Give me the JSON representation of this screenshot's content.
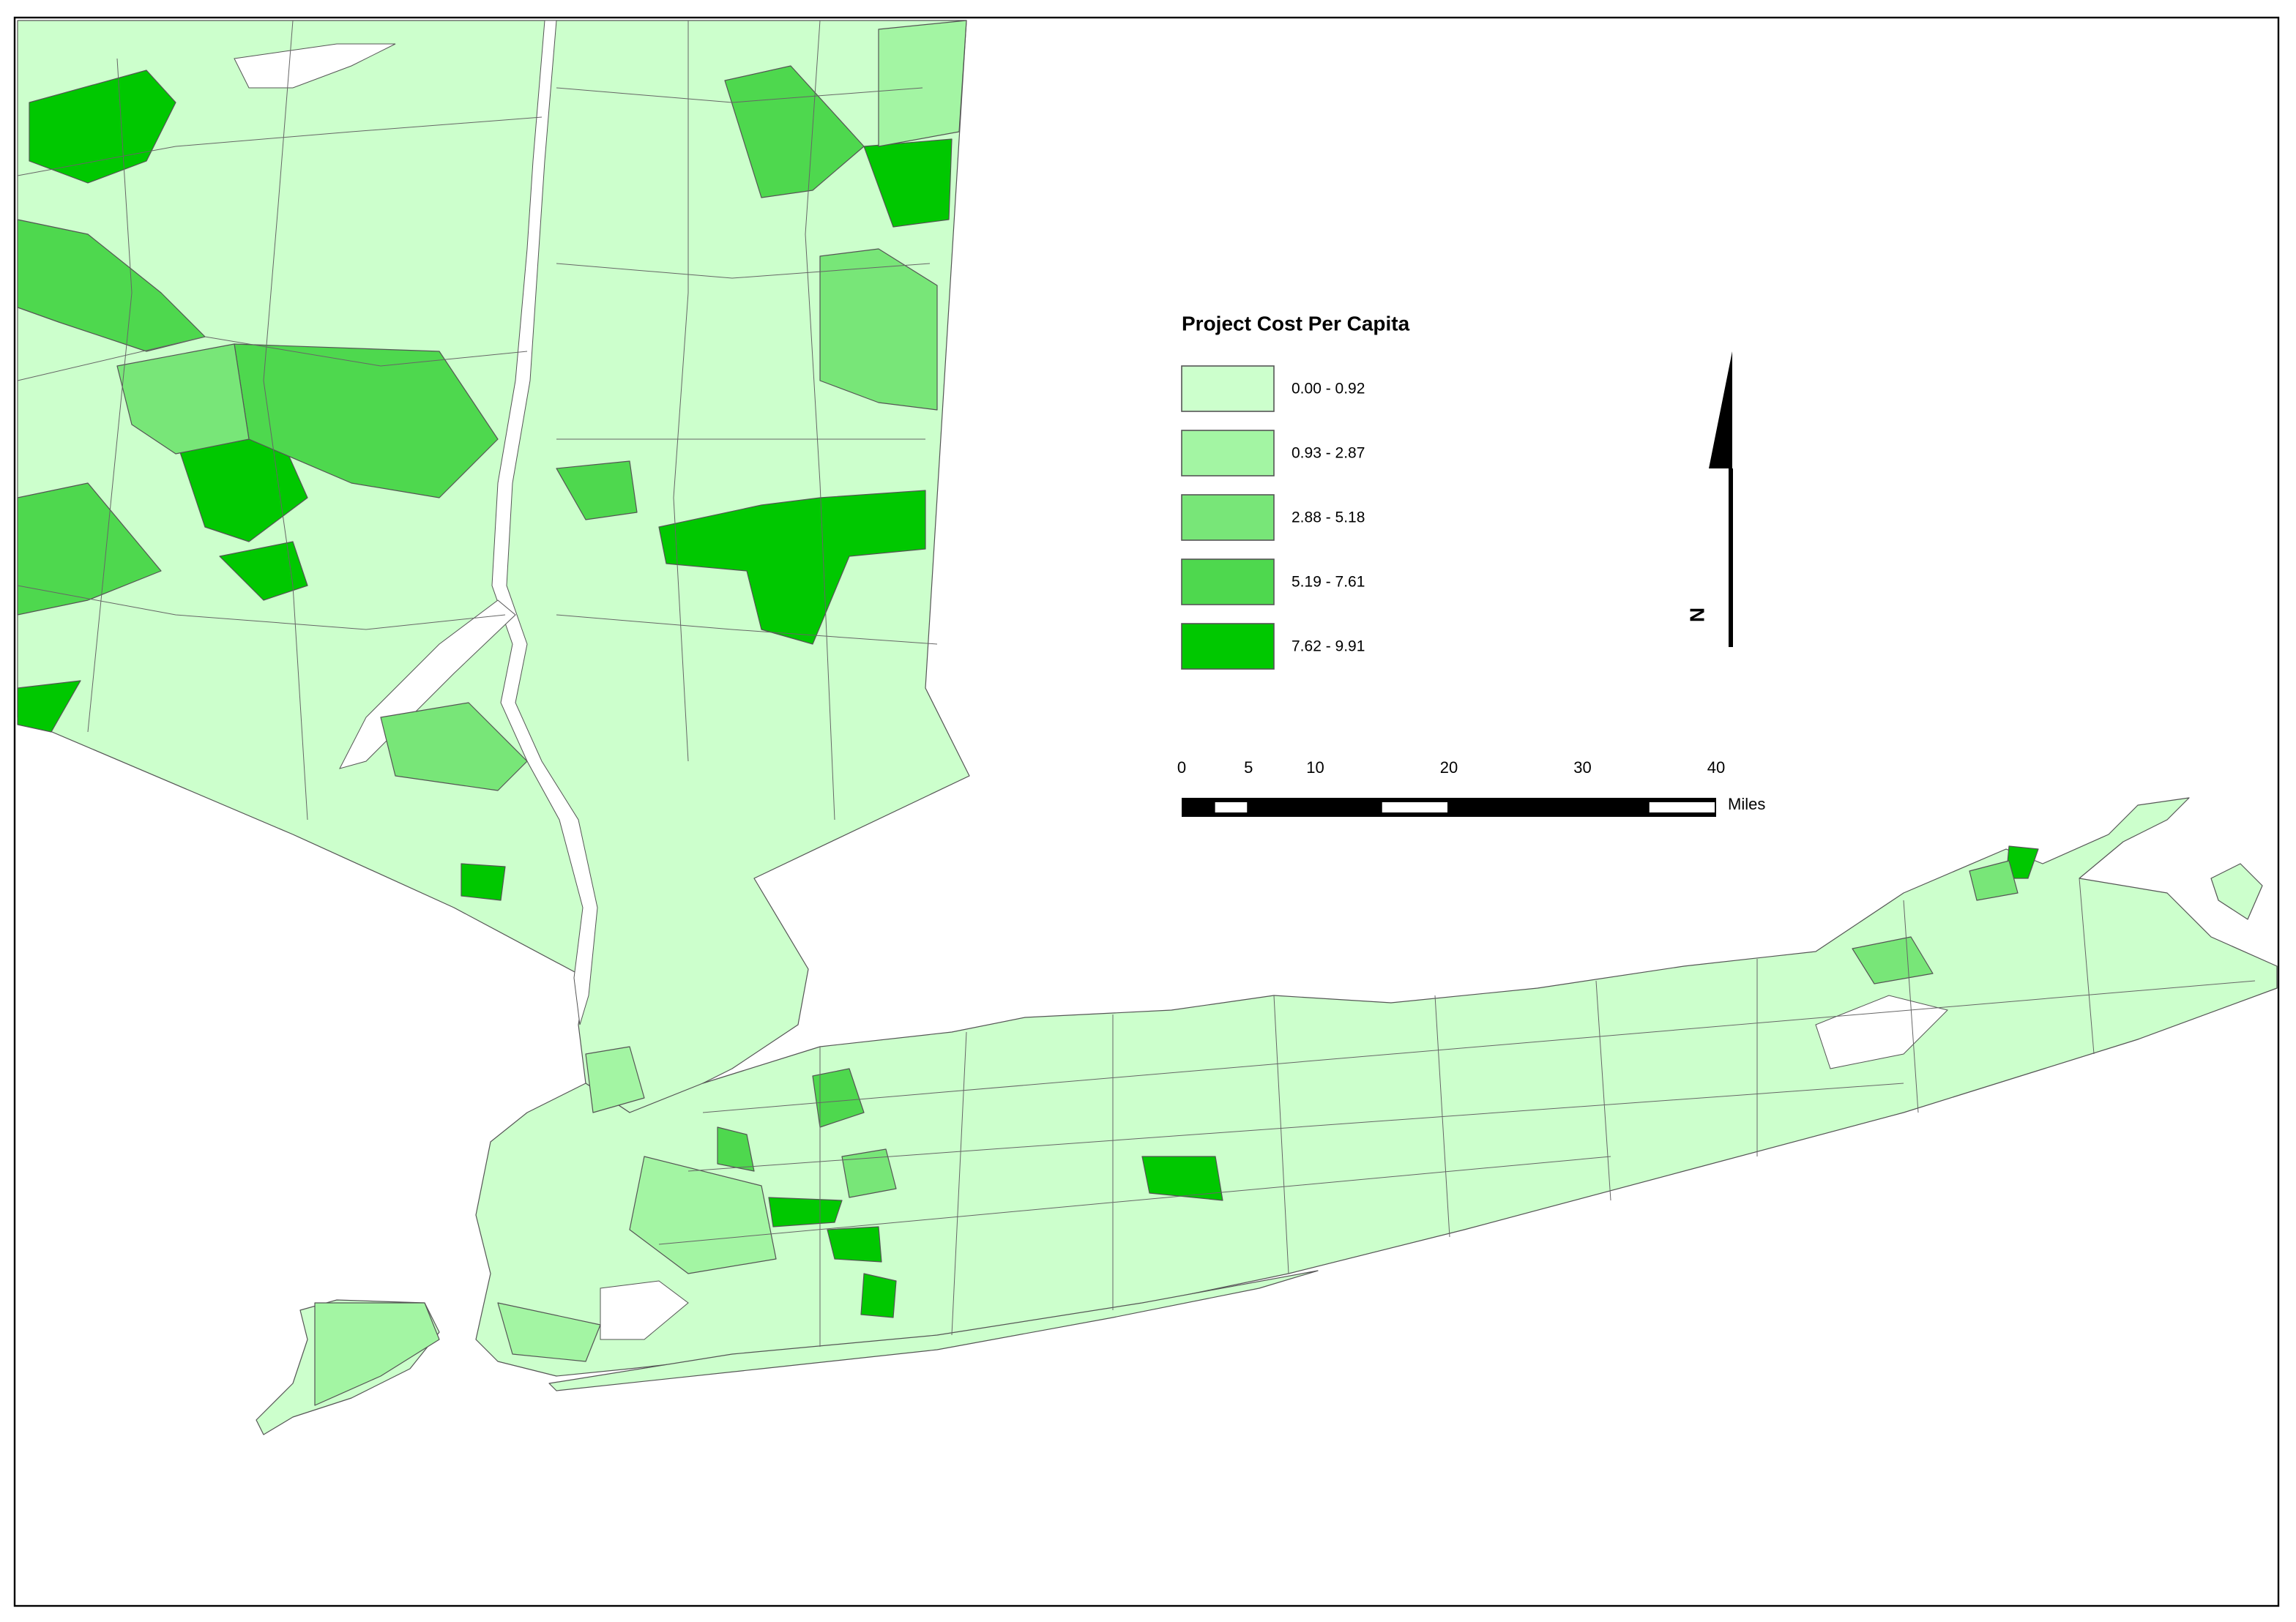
{
  "legend": {
    "title": "Project Cost Per Capita",
    "items": [
      {
        "label": "0.00 - 0.92",
        "color": "#ccffcc"
      },
      {
        "label": "0.93 - 2.87",
        "color": "#a3f5a3"
      },
      {
        "label": "2.88 - 5.18",
        "color": "#78e678"
      },
      {
        "label": "5.19 - 7.61",
        "color": "#4ed84e"
      },
      {
        "label": "7.62 - 9.91",
        "color": "#00c800"
      }
    ]
  },
  "scale_bar": {
    "ticks": [
      0,
      5,
      10,
      20,
      30,
      40
    ],
    "unit": "Miles"
  },
  "north_arrow": {
    "label": "N"
  }
}
